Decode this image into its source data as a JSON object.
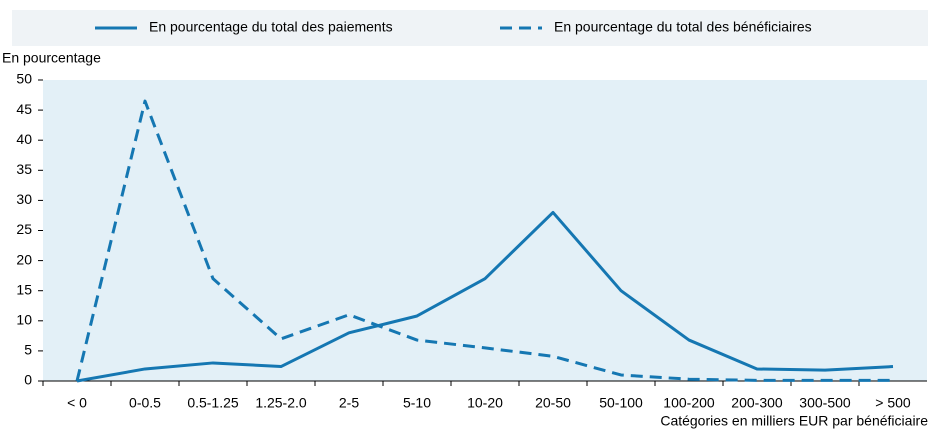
{
  "chart_data": {
    "type": "line",
    "y_axis_label": "En pourcentage",
    "x_axis_label": "Catégories en milliers EUR par bénéficiaire",
    "categories": [
      "< 0",
      "0-0.5",
      "0.5-1.25",
      "1.25-2.0",
      "2-5",
      "5-10",
      "10-20",
      "20-50",
      "50-100",
      "100-200",
      "200-300",
      "300-500",
      "> 500"
    ],
    "series": [
      {
        "name": "En pourcentage du total des paiements",
        "color": "#1577b2",
        "line_style": "solid",
        "values": [
          0,
          2,
          3,
          2.4,
          8,
          10.8,
          17,
          28,
          15,
          6.8,
          2,
          1.8,
          2.4
        ]
      },
      {
        "name": "En pourcentage du total des bénéficiaires",
        "color": "#1577b2",
        "line_style": "dashed",
        "values": [
          0,
          46.5,
          17,
          7,
          11,
          6.8,
          5.5,
          4.1,
          1,
          0.3,
          0.1,
          0.1,
          0.1
        ]
      }
    ],
    "ylim": [
      0,
      50
    ],
    "yticks": [
      0,
      5,
      10,
      15,
      20,
      25,
      30,
      35,
      40,
      45,
      50
    ],
    "grid": false,
    "legend": "top"
  }
}
